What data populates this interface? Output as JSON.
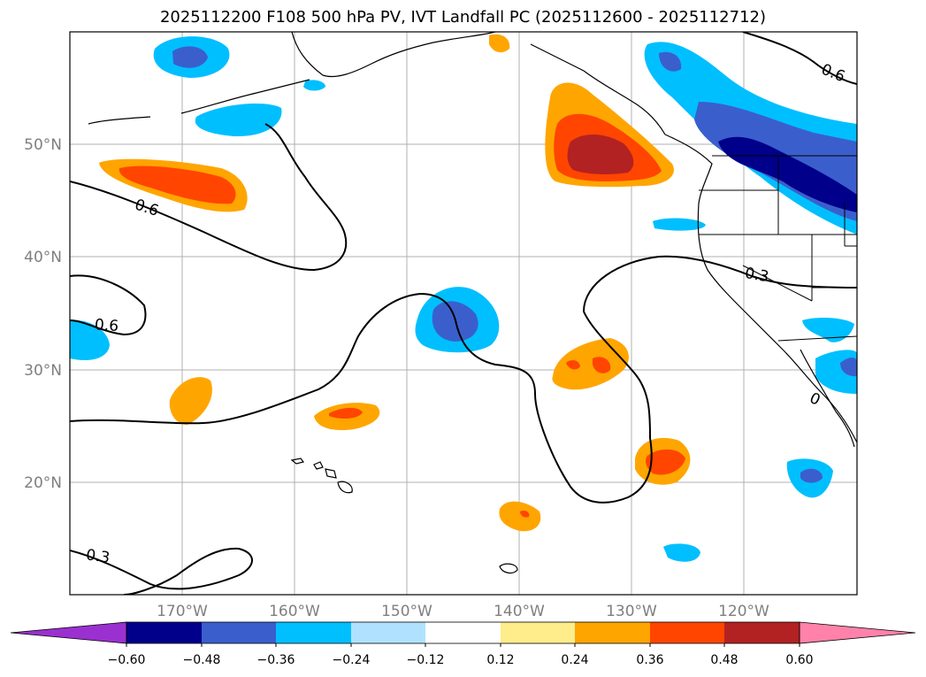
{
  "title": "2025112200 F108 500 hPa PV, IVT Landfall PC (2025112600 - 2025112712)",
  "map": {
    "lat_labels": [
      "50°N",
      "40°N",
      "30°N",
      "20°N"
    ],
    "lon_labels": [
      "170°W",
      "160°W",
      "150°W",
      "140°W",
      "130°W",
      "120°W"
    ],
    "contour_labels": [
      "0.6",
      "0.6",
      "0.6",
      "0.3",
      "0.3",
      "0"
    ],
    "colors": {
      "neg_060": "#9b30d0",
      "neg_048": "#00008b",
      "neg_036": "#3a5fcd",
      "neg_024": "#00bfff",
      "neg_012": "#b0e2ff",
      "zero": "#ffffff",
      "pos_012": "#ffec8b",
      "pos_024": "#ffa500",
      "pos_036": "#ff4500",
      "pos_048": "#b22222",
      "pos_060": "#ff82ab"
    }
  },
  "colorbar": {
    "ticks": [
      "−0.60",
      "−0.48",
      "−0.36",
      "−0.24",
      "−0.12",
      "0.12",
      "0.24",
      "0.36",
      "0.48",
      "0.60"
    ]
  }
}
